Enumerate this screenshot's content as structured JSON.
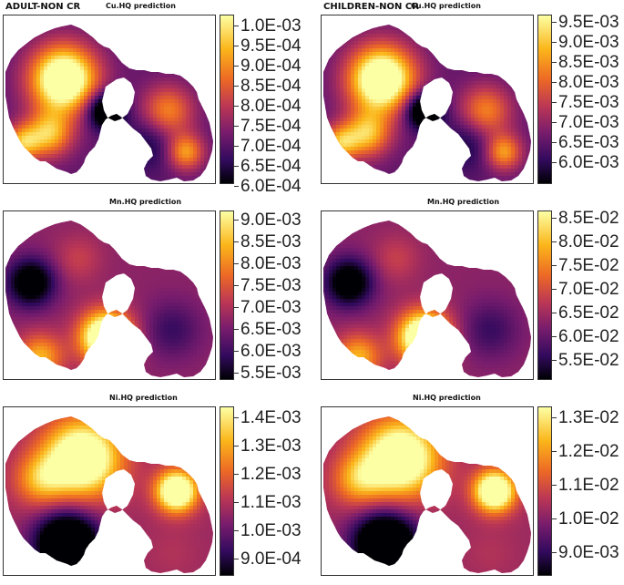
{
  "groups": {
    "adult": "ADULT-NON CR",
    "children": "CHILDREN-NON CR"
  },
  "palette": [
    "#000004",
    "#320a5e",
    "#781c6d",
    "#bc3754",
    "#ed6925",
    "#fbb61a",
    "#fcffa4"
  ],
  "panels": [
    {
      "title": "Cu.HQ prediction",
      "group": "adult",
      "ticks": [
        "1.0E-03",
        "9.5E-04",
        "9.0E-04",
        "8.5E-04",
        "8.0E-04",
        "7.5E-04",
        "7.0E-04",
        "6.5E-04",
        "6.0E-04"
      ],
      "scale_range": [
        "6.0E-04",
        "1.0E-03"
      ],
      "hotspots": [
        "upper-left core",
        "central-left"
      ]
    },
    {
      "title": "Cu.HQ prediction",
      "group": "children",
      "ticks": [
        "9.5E-03",
        "9.0E-03",
        "8.5E-03",
        "8.0E-03",
        "7.5E-03",
        "7.0E-03",
        "6.5E-03",
        "6.0E-03"
      ],
      "scale_range": [
        "5.8E-03",
        "9.7E-03"
      ],
      "hotspots": [
        "upper-left core",
        "central-left"
      ]
    },
    {
      "title": "Mn.HQ prediction",
      "group": "adult",
      "ticks": [
        "9.0E-03",
        "8.5E-03",
        "8.0E-03",
        "7.5E-03",
        "7.0E-03",
        "6.5E-03",
        "6.0E-03",
        "5.5E-03"
      ],
      "scale_range": [
        "5.5E-03",
        "9.3E-03"
      ],
      "hotspots": [
        "central bulge",
        "lower-left"
      ]
    },
    {
      "title": "Mn.HQ prediction",
      "group": "children",
      "ticks": [
        "8.5E-02",
        "8.0E-02",
        "7.5E-02",
        "7.0E-02",
        "6.5E-02",
        "6.0E-02",
        "5.5E-02"
      ],
      "scale_range": [
        "5.2E-02",
        "8.7E-02"
      ],
      "hotspots": [
        "central bulge",
        "lower-left"
      ]
    },
    {
      "title": "Ni.HQ prediction",
      "group": "adult",
      "ticks": [
        "1.4E-03",
        "1.3E-03",
        "1.2E-03",
        "1.1E-03",
        "1.0E-03",
        "9.0E-04"
      ],
      "scale_range": [
        "8.5E-04",
        "1.45E-03"
      ],
      "hotspots": [
        "upper-center",
        "right-upper"
      ]
    },
    {
      "title": "Ni.HQ prediction",
      "group": "children",
      "ticks": [
        "1.3E-02",
        "1.2E-02",
        "1.1E-02",
        "1.0E-02",
        "9.0E-03"
      ],
      "scale_range": [
        "8.0E-03",
        "1.35E-02"
      ],
      "hotspots": [
        "upper-center",
        "right-upper"
      ]
    }
  ]
}
